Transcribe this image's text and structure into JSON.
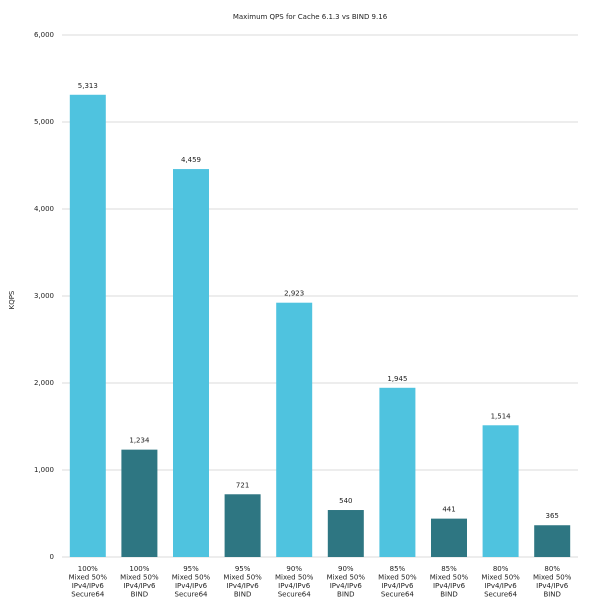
{
  "chart_data": {
    "type": "bar",
    "title": "Maximum QPS for Cache 6.1.3 vs BIND 9.16",
    "y_label": "KQPS",
    "categories": [
      [
        "100%",
        "Mixed 50%",
        "IPv4/IPv6",
        "Secure64"
      ],
      [
        "100%",
        "Mixed 50%",
        "IPv4/IPv6",
        "BIND"
      ],
      [
        "95%",
        "Mixed 50%",
        "IPv4/IPv6",
        "Secure64"
      ],
      [
        "95%",
        "Mixed 50%",
        "IPv4/IPv6",
        "BIND"
      ],
      [
        "90%",
        "Mixed 50%",
        "IPv4/IPv6",
        "Secure64"
      ],
      [
        "90%",
        "Mixed 50%",
        "IPv4/IPv6",
        "BIND"
      ],
      [
        "85%",
        "Mixed 50%",
        "IPv4/IPv6",
        "Secure64"
      ],
      [
        "85%",
        "Mixed 50%",
        "IPv4/IPv6",
        "BIND"
      ],
      [
        "80%",
        "Mixed 50%",
        "IPv4/IPv6",
        "Secure64"
      ],
      [
        "80%",
        "Mixed 50%",
        "IPv4/IPv6",
        "BIND"
      ]
    ],
    "values": [
      5313,
      1234,
      4459,
      721,
      2923,
      540,
      1945,
      441,
      1514,
      365
    ],
    "value_labels": [
      "5,313",
      "1,234",
      "4,459",
      "721",
      "2,923",
      "540",
      "1,945",
      "441",
      "1,514",
      "365"
    ],
    "colors": [
      "#4fc3df",
      "#2e7682",
      "#4fc3df",
      "#2e7682",
      "#4fc3df",
      "#2e7682",
      "#4fc3df",
      "#2e7682",
      "#4fc3df",
      "#2e7682"
    ],
    "ylim": [
      0,
      6000
    ],
    "yticks": [
      0,
      {
        "value": 1000,
        "label": "1,000"
      },
      {
        "value": 2000,
        "label": "2,000"
      },
      {
        "value": 3000,
        "label": "3,000"
      },
      {
        "value": 4000,
        "label": "4,000"
      },
      {
        "value": 5000,
        "label": "5,000"
      },
      {
        "value": 6000,
        "label": "6,000"
      }
    ],
    "grid": true
  }
}
